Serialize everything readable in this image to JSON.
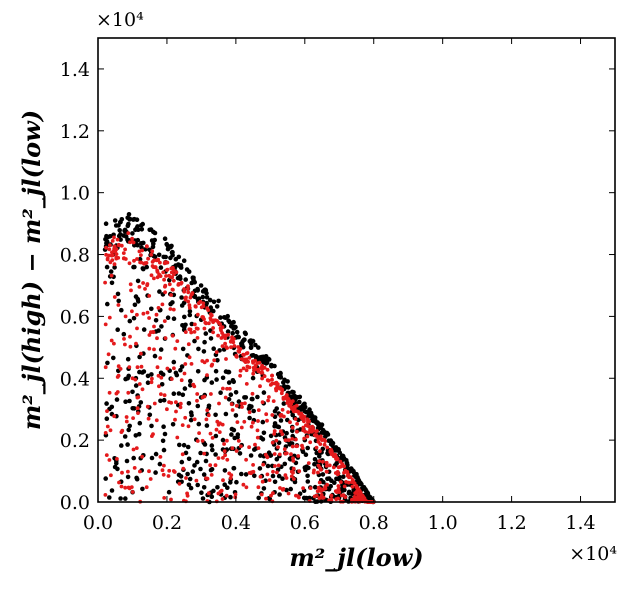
{
  "chart_data": {
    "type": "scatter",
    "title": "",
    "xlabel": "m²_jl(low)",
    "ylabel": "m²_jl(high) − m²_jl(low)",
    "xlim": [
      0,
      15000
    ],
    "ylim": [
      0,
      15000
    ],
    "x_multiplier": "×10⁴",
    "y_multiplier": "×10⁴",
    "xticks": [
      0.0,
      0.2,
      0.4,
      0.6,
      0.8,
      1.0,
      1.2,
      1.4
    ],
    "yticks": [
      0.0,
      0.2,
      0.4,
      0.6,
      0.8,
      1.0,
      1.2,
      1.4
    ],
    "xtick_labels": [
      "0.0",
      "0.2",
      "0.4",
      "0.6",
      "0.8",
      "1.0",
      "1.2",
      "1.4"
    ],
    "ytick_labels": [
      "0.0",
      "0.2",
      "0.4",
      "0.6",
      "0.8",
      "1.0",
      "1.2",
      "1.4"
    ],
    "grid": false,
    "series": [
      {
        "name": "black",
        "color": "#000000",
        "region": {
          "x_min": 200,
          "x_max": 8000,
          "edge": [
            [
              200,
              9000
            ],
            [
              900,
              9300
            ],
            [
              2000,
              8500
            ],
            [
              3000,
              7000
            ],
            [
              4000,
              5800
            ],
            [
              5000,
              4600
            ],
            [
              6000,
              3200
            ],
            [
              7000,
              1700
            ],
            [
              8000,
              0
            ]
          ]
        },
        "count": 900,
        "points": [
          [
            500,
            9100
          ],
          [
            900,
            9300
          ],
          [
            1500,
            8800
          ],
          [
            2500,
            7800
          ],
          [
            3500,
            6500
          ],
          [
            4500,
            5200
          ],
          [
            5500,
            3900
          ],
          [
            6500,
            2500
          ],
          [
            7500,
            900
          ],
          [
            7900,
            100
          ],
          [
            3000,
            300
          ],
          [
            1200,
            4200
          ],
          [
            2200,
            3500
          ],
          [
            4000,
            2800
          ],
          [
            5000,
            1500
          ],
          [
            6000,
            2000
          ],
          [
            600,
            6500
          ],
          [
            1800,
            6200
          ],
          [
            2800,
            5200
          ],
          [
            3800,
            4200
          ]
        ]
      },
      {
        "name": "red",
        "color": "#e41a1c",
        "region": {
          "x_min": 200,
          "x_max": 8000,
          "edge": [
            [
              200,
              8500
            ],
            [
              900,
              8700
            ],
            [
              2000,
              7800
            ],
            [
              3000,
              6500
            ],
            [
              4000,
              5200
            ],
            [
              5000,
              4200
            ],
            [
              6000,
              2800
            ],
            [
              7000,
              1400
            ],
            [
              7800,
              0
            ]
          ]
        },
        "count": 800,
        "points": [
          [
            600,
            8300
          ],
          [
            1200,
            8100
          ],
          [
            2000,
            7500
          ],
          [
            2500,
            6800
          ],
          [
            3500,
            5800
          ],
          [
            4500,
            4500
          ],
          [
            5500,
            3300
          ],
          [
            6500,
            2000
          ],
          [
            7500,
            500
          ],
          [
            2600,
            200
          ],
          [
            1000,
            4000
          ],
          [
            2000,
            3000
          ],
          [
            3500,
            2500
          ],
          [
            4500,
            1200
          ],
          [
            800,
            6000
          ],
          [
            1600,
            5500
          ]
        ]
      }
    ]
  }
}
